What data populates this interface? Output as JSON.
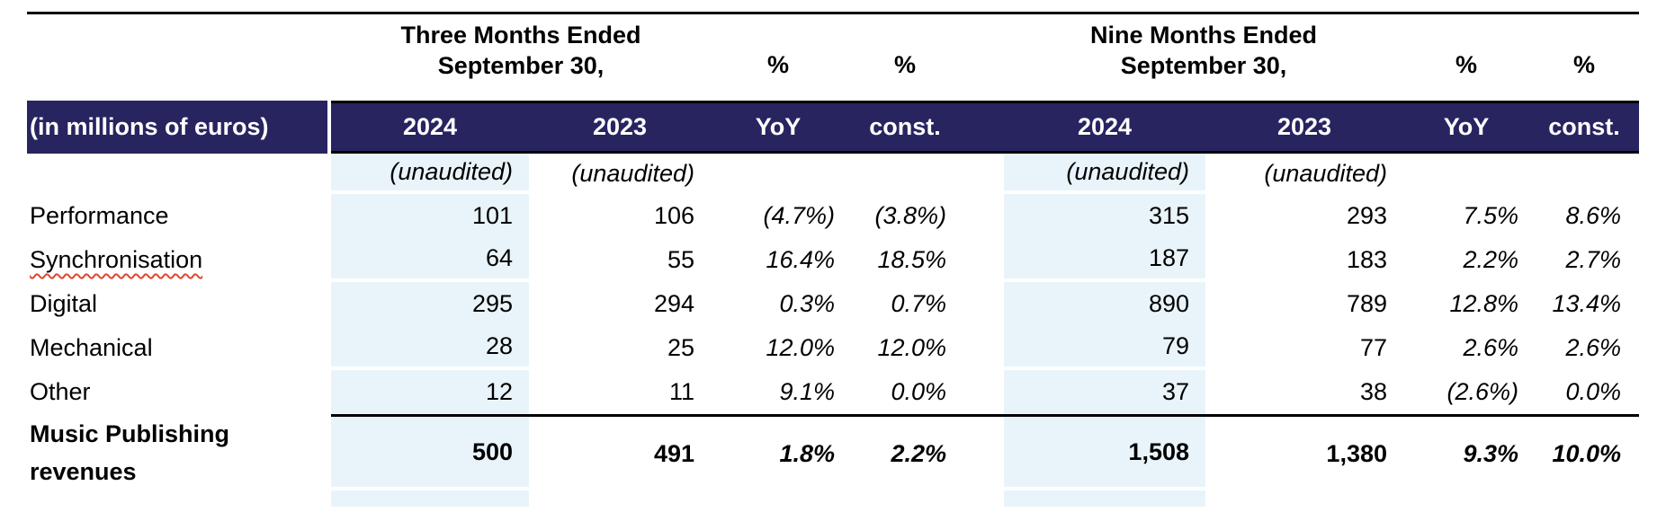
{
  "table": {
    "corner_label": "(in millions of euros)",
    "group_headers": {
      "three_months_line1": "Three Months Ended",
      "three_months_line2": "September 30,",
      "nine_months_line1": "Nine Months Ended",
      "nine_months_line2": "September 30,",
      "pct_symbol": "%"
    },
    "columns": {
      "y2024": "2024",
      "y2023": "2023",
      "yoy": "YoY",
      "const": "const."
    },
    "unaudited": "(unaudited)",
    "rows": [
      {
        "label": "Performance",
        "m3_2024": "101",
        "m3_2023": "106",
        "m3_yoy": "(4.7%)",
        "m3_const": "(3.8%)",
        "m9_2024": "315",
        "m9_2023": "293",
        "m9_yoy": "7.5%",
        "m9_const": "8.6%"
      },
      {
        "label": "Synchronisation",
        "m3_2024": "64",
        "m3_2023": "55",
        "m3_yoy": "16.4%",
        "m3_const": "18.5%",
        "m9_2024": "187",
        "m9_2023": "183",
        "m9_yoy": "2.2%",
        "m9_const": "2.7%"
      },
      {
        "label": "Digital",
        "m3_2024": "295",
        "m3_2023": "294",
        "m3_yoy": "0.3%",
        "m3_const": "0.7%",
        "m9_2024": "890",
        "m9_2023": "789",
        "m9_yoy": "12.8%",
        "m9_const": "13.4%"
      },
      {
        "label": "Mechanical",
        "m3_2024": "28",
        "m3_2023": "25",
        "m3_yoy": "12.0%",
        "m3_const": "12.0%",
        "m9_2024": "79",
        "m9_2023": "77",
        "m9_yoy": "2.6%",
        "m9_const": "2.6%"
      },
      {
        "label": "Other",
        "m3_2024": "12",
        "m3_2023": "11",
        "m3_yoy": "9.1%",
        "m3_const": "0.0%",
        "m9_2024": "37",
        "m9_2023": "38",
        "m9_yoy": "(2.6%)",
        "m9_const": "0.0%"
      }
    ],
    "total": {
      "label": "Music Publishing revenues",
      "m3_2024": "500",
      "m3_2023": "491",
      "m3_yoy": "1.8%",
      "m3_const": "2.2%",
      "m9_2024": "1,508",
      "m9_2023": "1,380",
      "m9_yoy": "9.3%",
      "m9_const": "10.0%"
    }
  },
  "colors": {
    "header_navy": "#282460",
    "column_highlight_blue": "#E9F4FA",
    "spellcheck_squiggle_red": "#E2452E"
  }
}
